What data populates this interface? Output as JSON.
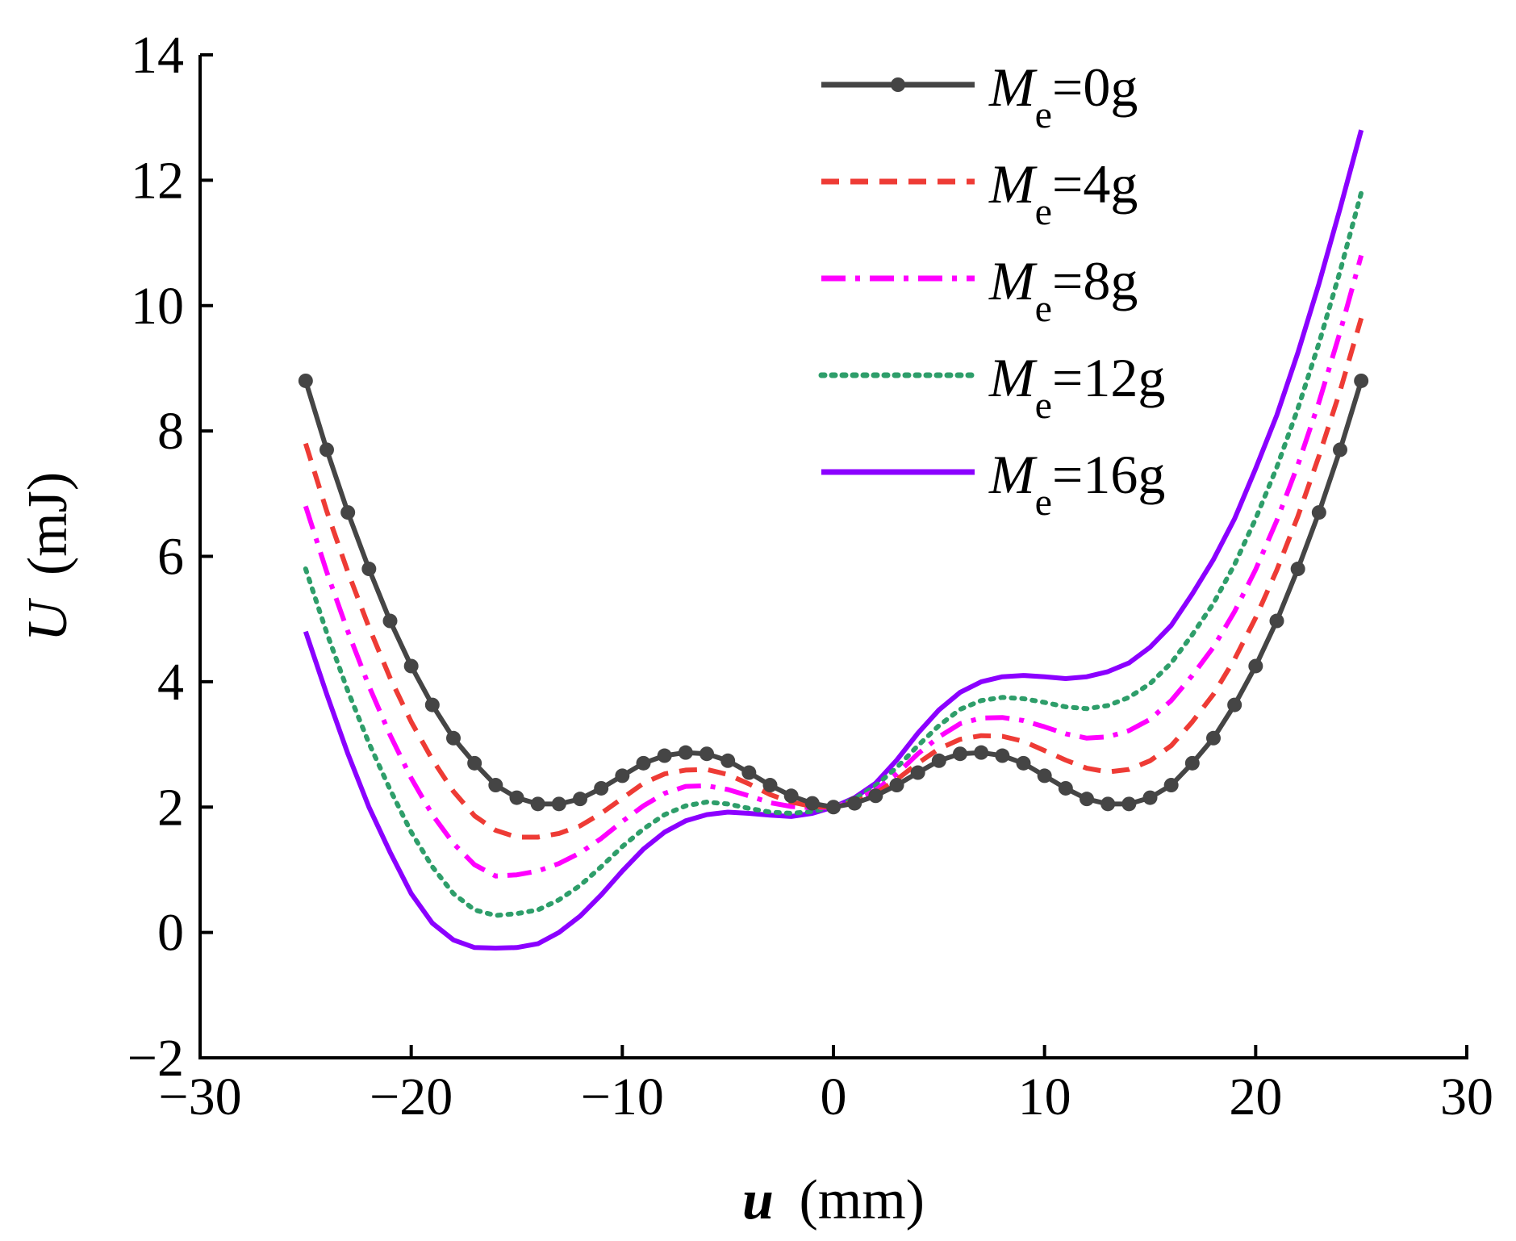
{
  "chart_data": {
    "type": "line",
    "title": "",
    "xlabel": {
      "var": "u",
      "unit": "(mm)"
    },
    "ylabel": {
      "var": "U",
      "unit": "(mJ)"
    },
    "xlim": [
      -30,
      30
    ],
    "ylim": [
      -2,
      14
    ],
    "xticks": [
      -30,
      -20,
      -10,
      0,
      10,
      20,
      30
    ],
    "xtick_labels": [
      "−30",
      "−20",
      "−10",
      "0",
      "10",
      "20",
      "30"
    ],
    "yticks": [
      -2,
      0,
      2,
      4,
      6,
      8,
      10,
      12,
      14
    ],
    "ytick_labels": [
      "−2",
      "0",
      "2",
      "4",
      "6",
      "8",
      "10",
      "12",
      "14"
    ],
    "grid": false,
    "legend_position": "top-right",
    "x": [
      -25,
      -24,
      -23,
      -22,
      -21,
      -20,
      -19,
      -18,
      -17,
      -16,
      -15,
      -14,
      -13,
      -12,
      -11,
      -10,
      -9,
      -8,
      -7,
      -6,
      -5,
      -4,
      -3,
      -2,
      -1,
      0,
      1,
      2,
      3,
      4,
      5,
      6,
      7,
      8,
      9,
      10,
      11,
      12,
      13,
      14,
      15,
      16,
      17,
      18,
      19,
      20,
      21,
      22,
      23,
      24,
      25
    ],
    "series": [
      {
        "name": "0g",
        "legend_prefix": "M",
        "legend_sub": "e",
        "legend_value": "=0g",
        "color": "#454545",
        "style": "solid-markers",
        "values": [
          8.8,
          7.7,
          6.7,
          5.8,
          4.97,
          4.25,
          3.63,
          3.1,
          2.7,
          2.35,
          2.15,
          2.05,
          2.05,
          2.13,
          2.3,
          2.5,
          2.7,
          2.82,
          2.87,
          2.85,
          2.74,
          2.55,
          2.35,
          2.18,
          2.06,
          2.0,
          2.06,
          2.18,
          2.35,
          2.55,
          2.74,
          2.85,
          2.87,
          2.82,
          2.7,
          2.5,
          2.3,
          2.13,
          2.05,
          2.05,
          2.15,
          2.35,
          2.7,
          3.1,
          3.63,
          4.25,
          4.97,
          5.8,
          6.7,
          7.7,
          8.8
        ]
      },
      {
        "name": "4g",
        "legend_prefix": "M",
        "legend_sub": "e",
        "legend_value": "=4g",
        "color": "#ee3b35",
        "style": "dashed",
        "values": [
          7.8,
          6.72,
          5.75,
          4.87,
          4.06,
          3.36,
          2.76,
          2.25,
          1.86,
          1.63,
          1.52,
          1.52,
          1.58,
          1.7,
          1.9,
          2.14,
          2.38,
          2.53,
          2.59,
          2.6,
          2.52,
          2.37,
          2.2,
          2.08,
          2.01,
          2.0,
          2.08,
          2.22,
          2.44,
          2.7,
          2.93,
          3.08,
          3.14,
          3.13,
          3.05,
          2.9,
          2.75,
          2.62,
          2.56,
          2.6,
          2.74,
          2.98,
          3.36,
          3.8,
          4.36,
          5.02,
          5.78,
          6.64,
          7.6,
          8.64,
          9.8
        ]
      },
      {
        "name": "8g",
        "legend_prefix": "M",
        "legend_sub": "e",
        "legend_value": "=8g",
        "color": "#ff00ff",
        "style": "dashdot",
        "values": [
          6.8,
          5.75,
          4.8,
          3.93,
          3.15,
          2.46,
          1.88,
          1.42,
          1.08,
          0.9,
          0.92,
          0.98,
          1.1,
          1.27,
          1.5,
          1.77,
          2.02,
          2.22,
          2.33,
          2.34,
          2.28,
          2.18,
          2.07,
          2.01,
          1.99,
          2.0,
          2.1,
          2.27,
          2.53,
          2.85,
          3.12,
          3.33,
          3.42,
          3.43,
          3.38,
          3.28,
          3.17,
          3.1,
          3.12,
          3.22,
          3.4,
          3.7,
          4.1,
          4.55,
          5.12,
          5.79,
          6.57,
          7.46,
          8.46,
          9.58,
          10.8
        ]
      },
      {
        "name": "12g",
        "legend_prefix": "M",
        "legend_sub": "e",
        "legend_value": "=12g",
        "color": "#2e9e6a",
        "style": "dotted",
        "values": [
          5.8,
          4.78,
          3.85,
          3.02,
          2.28,
          1.6,
          1.05,
          0.62,
          0.36,
          0.27,
          0.3,
          0.36,
          0.52,
          0.75,
          1.05,
          1.37,
          1.65,
          1.88,
          2.02,
          2.08,
          2.05,
          1.98,
          1.92,
          1.9,
          1.93,
          2.0,
          2.13,
          2.34,
          2.63,
          2.98,
          3.3,
          3.56,
          3.7,
          3.75,
          3.73,
          3.67,
          3.6,
          3.57,
          3.62,
          3.75,
          3.97,
          4.3,
          4.75,
          5.25,
          5.87,
          6.6,
          7.42,
          8.36,
          9.4,
          10.55,
          11.8
        ]
      },
      {
        "name": "16g",
        "legend_prefix": "M",
        "legend_sub": "e",
        "legend_value": "=16g",
        "color": "#8b00ff",
        "style": "solid",
        "values": [
          4.8,
          3.8,
          2.85,
          2.0,
          1.28,
          0.62,
          0.15,
          -0.12,
          -0.24,
          -0.25,
          -0.24,
          -0.18,
          0.0,
          0.26,
          0.6,
          0.98,
          1.33,
          1.6,
          1.78,
          1.88,
          1.92,
          1.9,
          1.87,
          1.85,
          1.9,
          2.0,
          2.15,
          2.38,
          2.75,
          3.18,
          3.55,
          3.83,
          4.0,
          4.08,
          4.1,
          4.08,
          4.05,
          4.08,
          4.16,
          4.3,
          4.55,
          4.9,
          5.4,
          5.95,
          6.6,
          7.4,
          8.25,
          9.25,
          10.35,
          11.55,
          12.8
        ]
      }
    ]
  }
}
